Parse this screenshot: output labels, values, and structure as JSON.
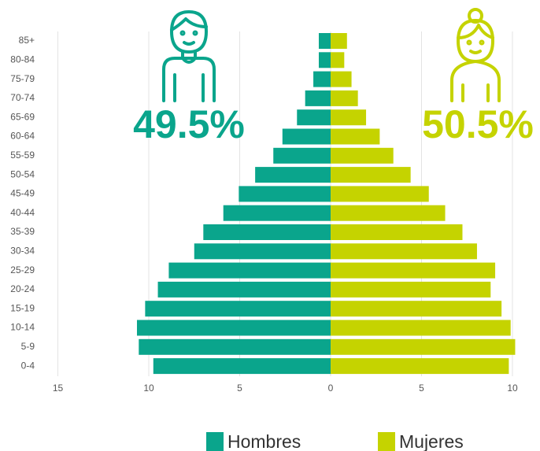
{
  "chart_data": {
    "type": "pyramid",
    "categories": [
      "85+",
      "80-84",
      "75-79",
      "70-74",
      "65-69",
      "60-64",
      "55-59",
      "50-54",
      "45-49",
      "40-44",
      "35-39",
      "30-34",
      "25-29",
      "20-24",
      "15-19",
      "10-14",
      "5-9",
      "0-4"
    ],
    "series": [
      {
        "name": "Hombres",
        "color": "#0aa58c",
        "values": [
          -0.65,
          -0.65,
          -0.95,
          -1.4,
          -1.85,
          -2.65,
          -3.15,
          -4.15,
          -5.05,
          -5.9,
          -7.0,
          -7.5,
          -8.9,
          -9.5,
          -10.2,
          -10.65,
          -10.55,
          -9.75
        ]
      },
      {
        "name": "Mujeres",
        "color": "#c5d300",
        "values": [
          0.9,
          0.75,
          1.15,
          1.5,
          1.95,
          2.7,
          3.45,
          4.4,
          5.4,
          6.3,
          7.25,
          8.05,
          9.05,
          8.8,
          9.4,
          9.9,
          10.15,
          9.8
        ]
      }
    ],
    "xlim": [
      -15,
      10
    ],
    "xticks": [
      {
        "value": -15,
        "label": "15"
      },
      {
        "value": -10,
        "label": "10"
      },
      {
        "value": -5,
        "label": "5"
      },
      0,
      5,
      10
    ],
    "grid": true,
    "annotations": [
      "49.5%",
      "50.5%"
    ]
  }
}
